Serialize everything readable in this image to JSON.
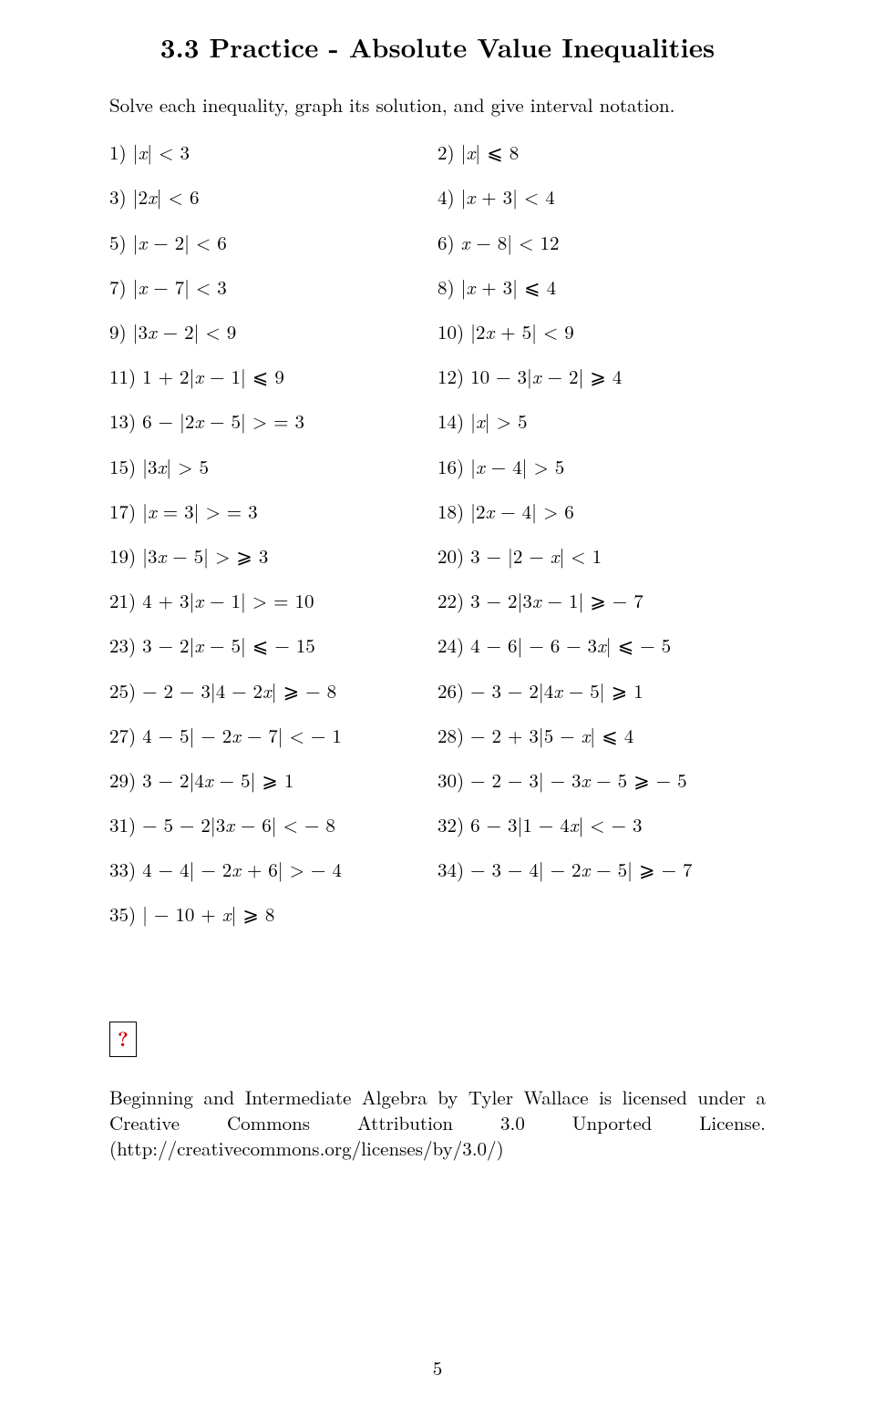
{
  "title": "3.3 Practice - Absolute Value Inequalities",
  "instructions": "Solve each inequality, graph its solution, and give interval notation.",
  "left": [
    {
      "n": "1)",
      "expr": "|x| < 3"
    },
    {
      "n": "3)",
      "expr": "|2x| < 6"
    },
    {
      "n": "5)",
      "expr": "|x − 2| < 6"
    },
    {
      "n": "7)",
      "expr": "|x − 7| < 3"
    },
    {
      "n": "9)",
      "expr": "|3x − 2| < 9"
    },
    {
      "n": "11)",
      "expr": "1 + 2|x − 1| ⩽ 9"
    },
    {
      "n": "13)",
      "expr": "6 − |2x − 5| > = 3"
    },
    {
      "n": "15)",
      "expr": "|3x| > 5"
    },
    {
      "n": "17)",
      "expr": "|x = 3| > = 3"
    },
    {
      "n": "19)",
      "expr": "|3x − 5| > ⩾ 3"
    },
    {
      "n": "21)",
      "expr": "4 + 3|x − 1| > = 10"
    },
    {
      "n": "23)",
      "expr": "3 − 2|x − 5| ⩽ − 15"
    },
    {
      "n": "25)",
      "expr": "− 2 − 3|4 − 2x| ⩾ − 8"
    },
    {
      "n": "27)",
      "expr": "4 − 5| − 2x − 7| < − 1"
    },
    {
      "n": "29)",
      "expr": "3 − 2|4x − 5| ⩾ 1"
    },
    {
      "n": "31)",
      "expr": "− 5 − 2|3x − 6| < − 8"
    },
    {
      "n": "33)",
      "expr": "4 − 4| − 2x + 6| > − 4"
    },
    {
      "n": "35)",
      "expr": "| − 10 + x| ⩾ 8"
    }
  ],
  "right": [
    {
      "n": "2)",
      "expr": "|x| ⩽ 8"
    },
    {
      "n": "4)",
      "expr": "|x + 3| < 4"
    },
    {
      "n": "6)",
      "expr": "x − 8| < 12"
    },
    {
      "n": "8)",
      "expr": "|x + 3| ⩽ 4"
    },
    {
      "n": "10)",
      "expr": "|2x + 5| < 9"
    },
    {
      "n": "12)",
      "expr": "10 − 3|x − 2| ⩾ 4"
    },
    {
      "n": "14)",
      "expr": "|x| > 5"
    },
    {
      "n": "16)",
      "expr": "|x − 4| > 5"
    },
    {
      "n": "18)",
      "expr": "|2x − 4| > 6"
    },
    {
      "n": "20)",
      "expr": "3 − |2 − x| < 1"
    },
    {
      "n": "22)",
      "expr": "3 − 2|3x − 1| ⩾ − 7"
    },
    {
      "n": "24)",
      "expr": "4 − 6| − 6 − 3x| ⩽ − 5"
    },
    {
      "n": "26)",
      "expr": "− 3 − 2|4x − 5| ⩾ 1"
    },
    {
      "n": "28)",
      "expr": "− 2 + 3|5 − x| ⩽ 4"
    },
    {
      "n": "30)",
      "expr": "− 2 − 3| − 3x − 5 ⩾ − 5"
    },
    {
      "n": "32)",
      "expr": "6 − 3|1 − 4x| < − 3"
    },
    {
      "n": "34)",
      "expr": "− 3 − 4| − 2x − 5| ⩾ − 7"
    }
  ],
  "missing_glyph": "?",
  "footer": "Beginning and Intermediate Algebra by Tyler Wallace is licensed under a Creative Commons Attribution 3.0 Unported License. (http://creativecommons.org/licenses/by/3.0/)",
  "page_number": "5"
}
